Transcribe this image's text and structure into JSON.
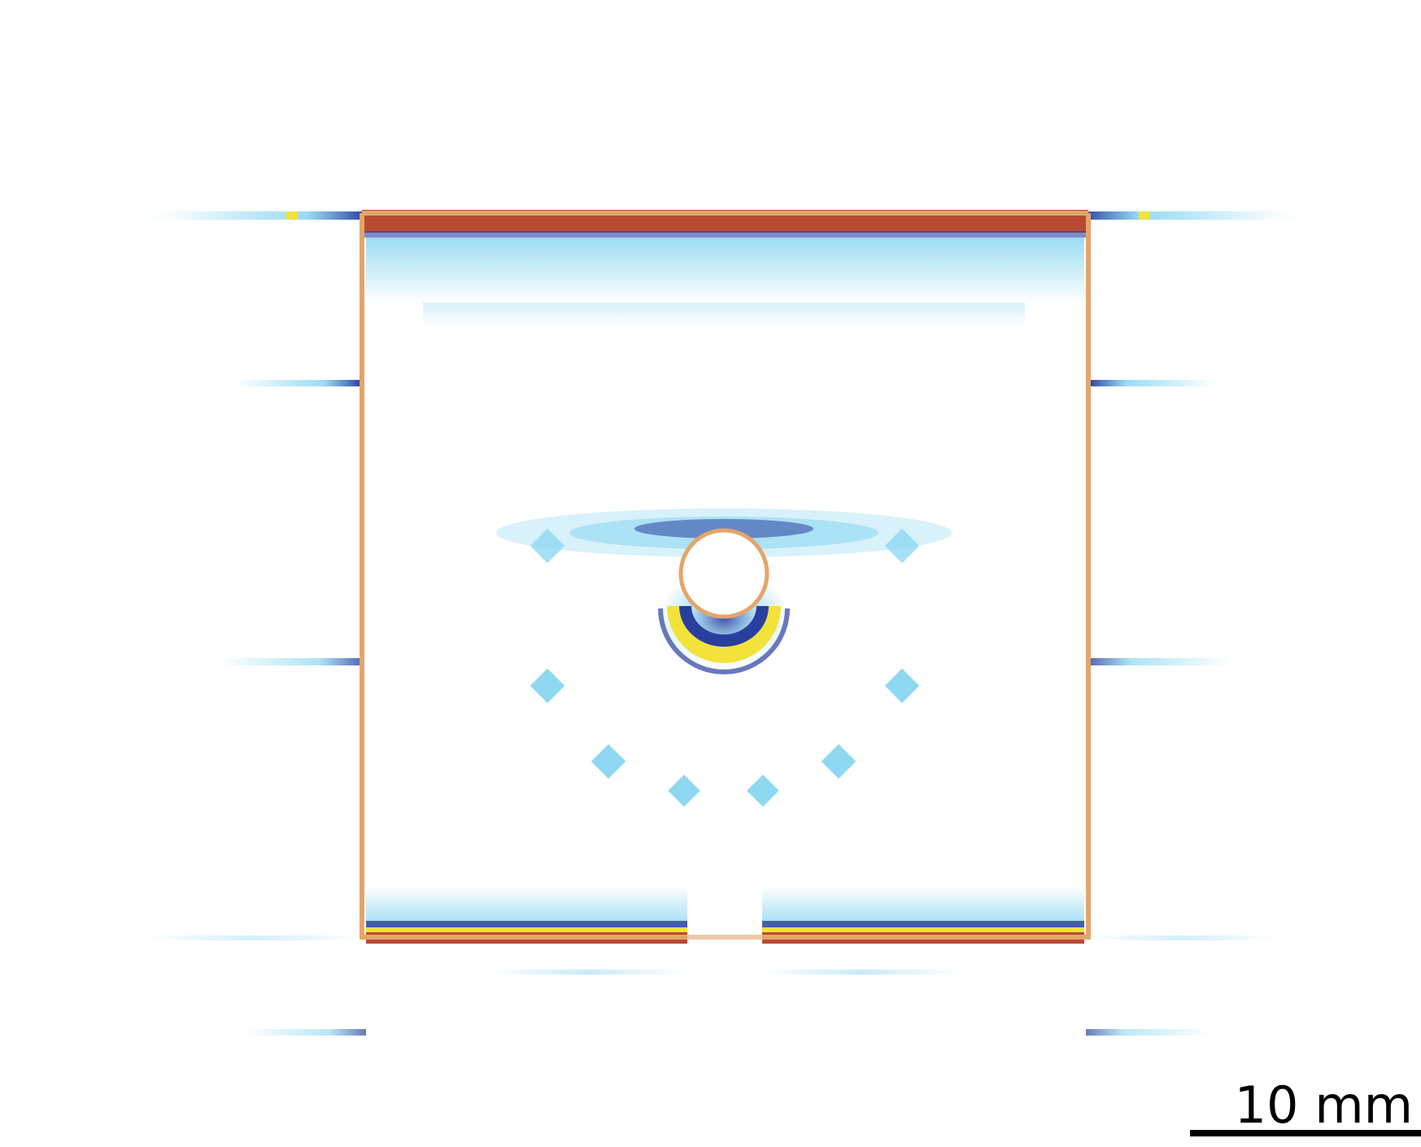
{
  "scale_bar": {
    "label": "10 mm"
  },
  "colors": {
    "outline": "#e4a56a",
    "high": "#b84a32",
    "mid_high": "#f2e23a",
    "mid": "#2a3e9e",
    "low": "#8fd8f2",
    "background": "#ffffff"
  }
}
